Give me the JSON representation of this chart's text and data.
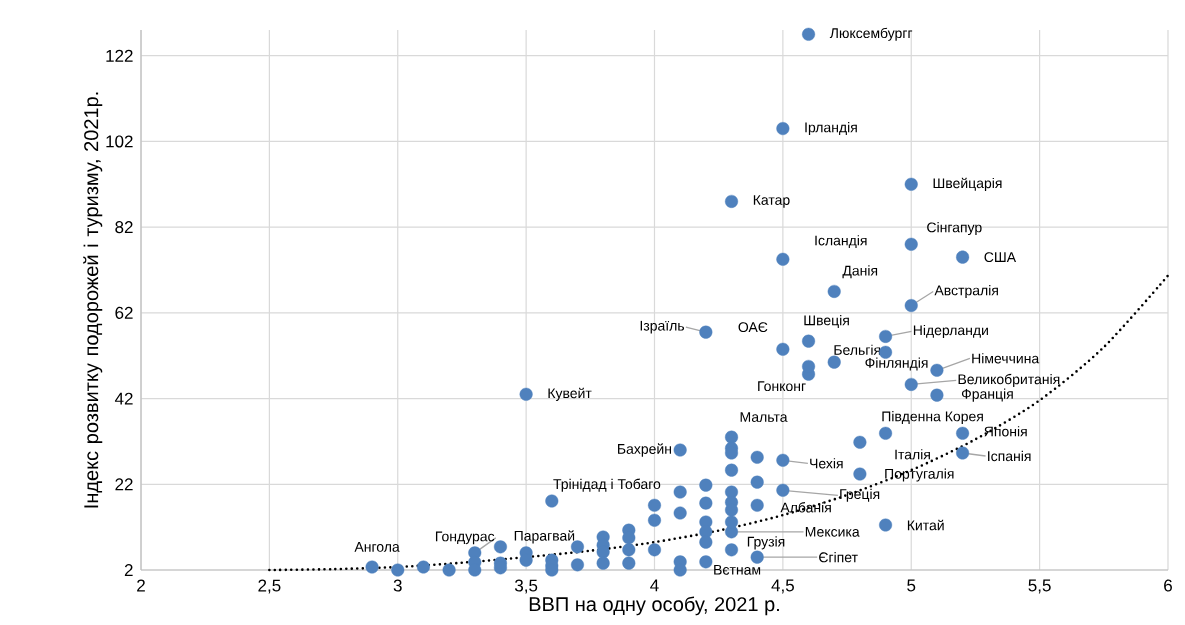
{
  "chart_data": {
    "type": "scatter",
    "xlabel": "ВВП на одну особу, 2021 р.",
    "ylabel": "Індекс розвитку подорожей і туризму, 2021р.",
    "xlim": [
      2,
      6
    ],
    "ylim": [
      2,
      128
    ],
    "xticks": [
      2,
      {
        "value": 2.5,
        "label": "2,5"
      },
      3,
      {
        "value": 3.5,
        "label": "3,5"
      },
      4,
      {
        "value": 4.5,
        "label": "4,5"
      },
      5,
      {
        "value": 5.5,
        "label": "5,5"
      },
      6
    ],
    "yticks": [
      2,
      22,
      42,
      62,
      82,
      102,
      122
    ],
    "grid": true,
    "series": [
      {
        "type": "scatter",
        "color": "#4f81bd",
        "marker": "circle",
        "x": [
          4.6,
          4.5,
          5.0,
          4.3,
          5.0,
          4.5,
          5.2,
          4.7,
          5.0,
          4.2,
          4.5,
          4.6,
          4.7,
          4.9,
          4.9,
          4.6,
          5.1,
          5.0,
          5.1,
          3.5,
          4.3,
          4.1,
          4.5,
          4.9,
          5.2,
          4.8,
          5.2,
          4.8,
          3.6,
          4.5,
          4.4,
          4.3,
          4.3,
          4.4,
          4.2,
          4.9,
          3.4,
          3.3,
          2.9,
          4.6,
          4.4,
          3.0,
          3.1,
          3.2,
          3.3,
          3.3,
          3.4,
          3.4,
          3.5,
          3.5,
          3.6,
          3.6,
          3.6,
          3.7,
          3.7,
          3.8,
          3.8,
          3.8,
          3.8,
          3.9,
          3.9,
          3.9,
          3.9,
          4.0,
          4.0,
          4.0,
          4.1,
          4.1,
          4.1,
          4.1,
          4.2,
          4.2,
          4.2,
          4.2,
          4.2,
          4.3,
          4.3,
          4.3,
          4.3,
          4.3,
          4.3,
          4.3,
          4.4
        ],
        "values": [
          127,
          105,
          92,
          88,
          78,
          74.5,
          75,
          67,
          63.7,
          57.5,
          53.5,
          55.4,
          50.5,
          56.5,
          52.8,
          47.7,
          48.6,
          45.3,
          42.8,
          43,
          33,
          30,
          27.6,
          33.9,
          33.9,
          31.8,
          29.3,
          24.4,
          18.1,
          20.6,
          17.1,
          10.9,
          6.7,
          5.0,
          3.9,
          12.5,
          7.4,
          6.0,
          2.7,
          49.5,
          28.3,
          2,
          2.7,
          2,
          3.8,
          2,
          3.6,
          2.5,
          6,
          4.3,
          4.3,
          3,
          2,
          7.4,
          3.2,
          9.7,
          7.8,
          6.2,
          3.6,
          11.3,
          9.5,
          6.7,
          3.6,
          17.1,
          13.6,
          6.7,
          20.2,
          15.3,
          3.9,
          2,
          21.8,
          17.6,
          13.2,
          10.9,
          8.5,
          30.4,
          29.3,
          25.3,
          20.2,
          17.8,
          16.0,
          13.2,
          22.5
        ]
      },
      {
        "type": "line",
        "color": "#000000",
        "line_style": "dotted",
        "x": [
          2.5,
          2.75,
          3.0,
          3.25,
          3.5,
          3.75,
          4.0,
          4.25,
          4.5,
          4.75,
          5.0,
          5.25,
          5.5,
          5.75,
          6.0
        ],
        "values": [
          2,
          2.2,
          2.7,
          3.7,
          5.0,
          6.5,
          8.5,
          11.2,
          14.8,
          19.5,
          25.3,
          32.5,
          41.6,
          54,
          70.7
        ]
      }
    ],
    "annotations": [
      {
        "text": "Люксембургг",
        "x": 4.6,
        "y": 127
      },
      {
        "text": "Ірландія",
        "x": 4.5,
        "y": 105
      },
      {
        "text": "Швейцарія",
        "x": 5.0,
        "y": 92
      },
      {
        "text": "Катар",
        "x": 4.3,
        "y": 88
      },
      {
        "text": "Сінгапур",
        "x": 5.0,
        "y": 78
      },
      {
        "text": "Ісландія",
        "x": 4.5,
        "y": 74.5
      },
      {
        "text": "США",
        "x": 5.2,
        "y": 75
      },
      {
        "text": "Данія",
        "x": 4.7,
        "y": 67
      },
      {
        "text": "Австралія",
        "x": 5.0,
        "y": 63.7
      },
      {
        "text": "Ізраїль",
        "x": 4.2,
        "y": 57.5
      },
      {
        "text": "ОАЄ",
        "x": 4.5,
        "y": 53.5
      },
      {
        "text": "Швеція",
        "x": 4.6,
        "y": 55.4
      },
      {
        "text": "Бельгія",
        "x": 4.7,
        "y": 50.5
      },
      {
        "text": "Нідерланди",
        "x": 4.9,
        "y": 56.5
      },
      {
        "text": "Фінляндія",
        "x": 4.9,
        "y": 52.8
      },
      {
        "text": "Гонконг",
        "x": 4.6,
        "y": 47.7
      },
      {
        "text": "Німеччина",
        "x": 5.1,
        "y": 48.6
      },
      {
        "text": "Великобританія",
        "x": 5.0,
        "y": 45.3
      },
      {
        "text": "Франція",
        "x": 5.1,
        "y": 42.8
      },
      {
        "text": "Кувейт",
        "x": 3.5,
        "y": 43
      },
      {
        "text": "Мальта",
        "x": 4.3,
        "y": 33
      },
      {
        "text": "Бахрейн",
        "x": 4.1,
        "y": 30
      },
      {
        "text": "Чехія",
        "x": 4.5,
        "y": 27.6
      },
      {
        "text": "Південна Корея",
        "x": 4.9,
        "y": 33.9
      },
      {
        "text": "Японія",
        "x": 5.2,
        "y": 33.9
      },
      {
        "text": "Італія",
        "x": 4.8,
        "y": 31.8
      },
      {
        "text": "Іспанія",
        "x": 5.2,
        "y": 29.3
      },
      {
        "text": "Португалія",
        "x": 4.8,
        "y": 24.4
      },
      {
        "text": "Трінідад і Тобаго",
        "x": 3.6,
        "y": 18.1
      },
      {
        "text": "Греція",
        "x": 4.5,
        "y": 20.6
      },
      {
        "text": "Албанія",
        "x": 4.4,
        "y": 17.1
      },
      {
        "text": "Мексика",
        "x": 4.3,
        "y": 10.9
      },
      {
        "text": "Грузія",
        "x": 4.3,
        "y": 6.7
      },
      {
        "text": "Єгіпет",
        "x": 4.4,
        "y": 5.0
      },
      {
        "text": "Вєтнам",
        "x": 4.2,
        "y": 3.9
      },
      {
        "text": "Китай",
        "x": 4.9,
        "y": 12.5
      },
      {
        "text": "Парагвай",
        "x": 3.4,
        "y": 7.4
      },
      {
        "text": "Гондурас",
        "x": 3.3,
        "y": 6.0
      },
      {
        "text": "Ангола",
        "x": 2.9,
        "y": 2.7
      }
    ]
  }
}
